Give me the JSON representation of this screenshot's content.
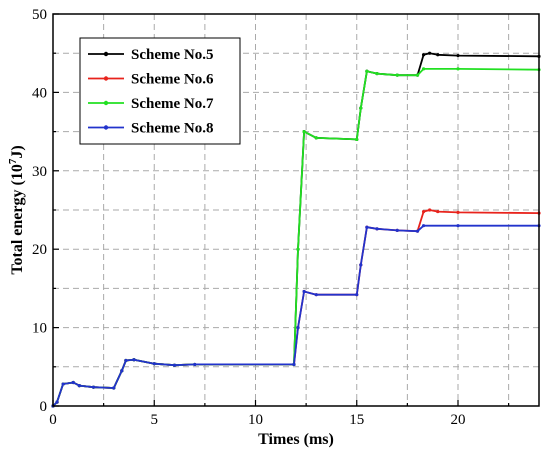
{
  "chart_data": {
    "type": "line",
    "title": "",
    "xlabel": "Times (ms)",
    "ylabel": "Total energy  (10",
    "ylabel_sup": "7",
    "ylabel_unit": "J)",
    "xlim": [
      0,
      24
    ],
    "ylim": [
      0,
      50
    ],
    "x_ticks": [
      0,
      5,
      10,
      15,
      20
    ],
    "y_ticks": [
      0,
      10,
      20,
      30,
      40,
      50
    ],
    "grid": true,
    "legend_position": "top-left",
    "series": [
      {
        "name": "Scheme No.5",
        "color": "#000000",
        "points": [
          [
            0,
            0
          ],
          [
            0.2,
            0.5
          ],
          [
            0.5,
            2.8
          ],
          [
            1,
            3.0
          ],
          [
            1.3,
            2.6
          ],
          [
            2,
            2.4
          ],
          [
            3,
            2.3
          ],
          [
            3.4,
            4.5
          ],
          [
            3.6,
            5.8
          ],
          [
            4,
            5.9
          ],
          [
            5,
            5.4
          ],
          [
            6,
            5.2
          ],
          [
            7,
            5.3
          ],
          [
            11.9,
            5.3
          ],
          [
            12.1,
            20
          ],
          [
            12.4,
            35
          ],
          [
            13,
            34.2
          ],
          [
            15,
            34
          ],
          [
            15.2,
            38
          ],
          [
            15.5,
            42.7
          ],
          [
            16,
            42.4
          ],
          [
            17,
            42.2
          ],
          [
            18,
            42.2
          ],
          [
            18.3,
            44.8
          ],
          [
            18.6,
            45
          ],
          [
            19,
            44.8
          ],
          [
            20,
            44.7
          ],
          [
            24,
            44.6
          ]
        ]
      },
      {
        "name": "Scheme No.6",
        "color": "#e8231c",
        "points": [
          [
            0,
            0
          ],
          [
            0.2,
            0.5
          ],
          [
            0.5,
            2.8
          ],
          [
            1,
            3.0
          ],
          [
            1.3,
            2.6
          ],
          [
            2,
            2.4
          ],
          [
            3,
            2.3
          ],
          [
            3.4,
            4.5
          ],
          [
            3.6,
            5.8
          ],
          [
            4,
            5.9
          ],
          [
            5,
            5.4
          ],
          [
            6,
            5.2
          ],
          [
            7,
            5.3
          ],
          [
            11.9,
            5.3
          ],
          [
            12.1,
            10
          ],
          [
            12.4,
            14.6
          ],
          [
            13,
            14.2
          ],
          [
            15,
            14.2
          ],
          [
            15.2,
            18
          ],
          [
            15.5,
            22.8
          ],
          [
            16,
            22.6
          ],
          [
            17,
            22.4
          ],
          [
            18,
            22.3
          ],
          [
            18.3,
            24.8
          ],
          [
            18.6,
            25
          ],
          [
            19,
            24.8
          ],
          [
            20,
            24.7
          ],
          [
            24,
            24.6
          ]
        ]
      },
      {
        "name": "Scheme No.7",
        "color": "#22e022",
        "points": [
          [
            0,
            0
          ],
          [
            0.2,
            0.5
          ],
          [
            0.5,
            2.8
          ],
          [
            1,
            3.0
          ],
          [
            1.3,
            2.6
          ],
          [
            2,
            2.4
          ],
          [
            3,
            2.3
          ],
          [
            3.4,
            4.5
          ],
          [
            3.6,
            5.8
          ],
          [
            4,
            5.9
          ],
          [
            5,
            5.4
          ],
          [
            6,
            5.2
          ],
          [
            7,
            5.3
          ],
          [
            11.9,
            5.3
          ],
          [
            12.1,
            20
          ],
          [
            12.4,
            35
          ],
          [
            13,
            34.2
          ],
          [
            15,
            34
          ],
          [
            15.2,
            38
          ],
          [
            15.5,
            42.7
          ],
          [
            16,
            42.4
          ],
          [
            17,
            42.2
          ],
          [
            18,
            42.2
          ],
          [
            18.3,
            43
          ],
          [
            20,
            43
          ],
          [
            24,
            42.9
          ]
        ]
      },
      {
        "name": "Scheme No.8",
        "color": "#2233cc",
        "points": [
          [
            0,
            0
          ],
          [
            0.2,
            0.5
          ],
          [
            0.5,
            2.8
          ],
          [
            1,
            3.0
          ],
          [
            1.3,
            2.6
          ],
          [
            2,
            2.4
          ],
          [
            3,
            2.3
          ],
          [
            3.4,
            4.5
          ],
          [
            3.6,
            5.8
          ],
          [
            4,
            5.9
          ],
          [
            5,
            5.4
          ],
          [
            6,
            5.2
          ],
          [
            7,
            5.3
          ],
          [
            11.9,
            5.3
          ],
          [
            12.1,
            10
          ],
          [
            12.4,
            14.6
          ],
          [
            13,
            14.2
          ],
          [
            15,
            14.2
          ],
          [
            15.2,
            18
          ],
          [
            15.5,
            22.8
          ],
          [
            16,
            22.6
          ],
          [
            17,
            22.4
          ],
          [
            18,
            22.3
          ],
          [
            18.3,
            23
          ],
          [
            20,
            23
          ],
          [
            24,
            23
          ]
        ]
      }
    ]
  }
}
